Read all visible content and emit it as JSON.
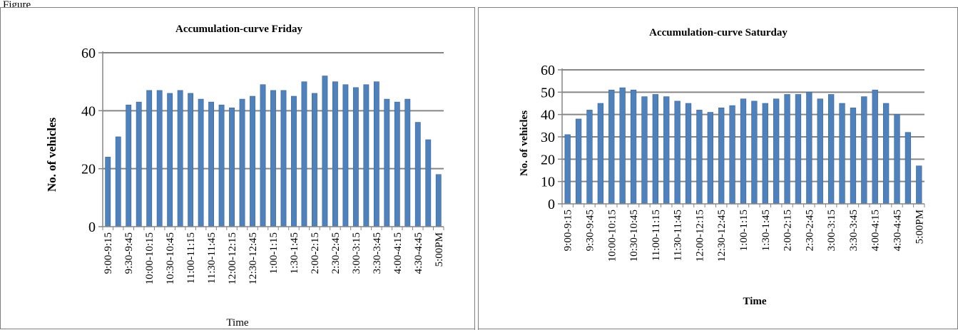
{
  "figure": {
    "caption": "Figure"
  },
  "chart_data": [
    {
      "type": "bar",
      "title": "Accumulation-curve Friday",
      "xlabel": "Time",
      "ylabel": "No. of vehicles",
      "ylim": [
        0,
        60
      ],
      "yticks": [
        0,
        20,
        40,
        60
      ],
      "grid": "horizontal",
      "legend": "none",
      "bar_color": "#4f81bd",
      "tick_labels": [
        "9:00-9:15",
        "9:30-9:45",
        "10:00-10:15",
        "10:30-10:45",
        "11:00-11:15",
        "11:30-11:45",
        "12:00-12:15",
        "12:30-12:45",
        "1:00-1:15",
        "1:30-1:45",
        "2:00-2:15",
        "2:30-2:45",
        "3:00-3:15",
        "3:30-3:45",
        "4:00-4:15",
        "4:30-4:45",
        "5:00PM"
      ],
      "values": [
        24,
        31,
        42,
        43,
        47,
        47,
        46,
        47,
        46,
        44,
        43,
        42,
        41,
        44,
        45,
        49,
        47,
        47,
        45,
        50,
        46,
        52,
        50,
        49,
        48,
        49,
        50,
        44,
        43,
        44,
        36,
        30,
        18
      ]
    },
    {
      "type": "bar",
      "title": "Accumulation-curve Saturday",
      "xlabel": "Time",
      "ylabel": "No. of vehicles",
      "ylim": [
        0,
        60
      ],
      "yticks": [
        0,
        10,
        20,
        30,
        40,
        50,
        60
      ],
      "grid": "horizontal",
      "legend": "none",
      "bar_color": "#4f81bd",
      "tick_labels": [
        "9:00-9:15",
        "9:30-9:45",
        "10:00-10:15",
        "10:30-10:45",
        "11:00-11:15",
        "11:30-11:45",
        "12:00-12:15",
        "12:30-12:45",
        "1:00-1:15",
        "1:30-1:45",
        "2:00-2:15",
        "2:30-2:45",
        "3:00-3:15",
        "3:30-3:45",
        "4:00-4:15",
        "4:30-4:45",
        "5:00PM"
      ],
      "values": [
        31,
        38,
        42,
        45,
        51,
        52,
        51,
        48,
        49,
        48,
        46,
        45,
        42,
        41,
        43,
        44,
        47,
        46,
        45,
        47,
        49,
        49,
        50,
        47,
        49,
        45,
        43,
        48,
        51,
        45,
        40,
        32,
        17
      ]
    }
  ]
}
